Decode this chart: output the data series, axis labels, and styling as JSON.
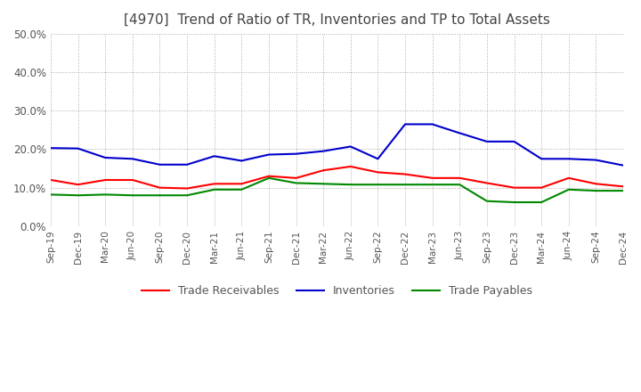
{
  "title": "[4970]  Trend of Ratio of TR, Inventories and TP to Total Assets",
  "title_fontsize": 11,
  "title_color": "#444444",
  "background_color": "#ffffff",
  "grid_color": "#aaaaaa",
  "grid_linestyle": "dotted",
  "ylim": [
    0.0,
    0.5
  ],
  "yticks": [
    0.0,
    0.1,
    0.2,
    0.3,
    0.4,
    0.5
  ],
  "legend_labels": [
    "Trade Receivables",
    "Inventories",
    "Trade Payables"
  ],
  "legend_colors": [
    "#ff0000",
    "#0000cc",
    "#008800"
  ],
  "x_labels": [
    "Sep-19",
    "Dec-19",
    "Mar-20",
    "Jun-20",
    "Sep-20",
    "Dec-20",
    "Mar-21",
    "Jun-21",
    "Sep-21",
    "Dec-21",
    "Mar-22",
    "Jun-22",
    "Sep-22",
    "Dec-22",
    "Mar-23",
    "Jun-23",
    "Sep-23",
    "Dec-23",
    "Mar-24",
    "Jun-24",
    "Sep-24",
    "Dec-24"
  ],
  "trade_receivables": [
    0.12,
    0.108,
    0.12,
    0.12,
    0.1,
    0.098,
    0.11,
    0.11,
    0.13,
    0.125,
    0.145,
    0.155,
    0.14,
    0.135,
    0.125,
    0.125,
    0.112,
    0.1,
    0.1,
    0.125,
    0.11,
    0.103
  ],
  "inventories": [
    0.203,
    0.202,
    0.178,
    0.175,
    0.16,
    0.16,
    0.182,
    0.17,
    0.186,
    0.188,
    0.195,
    0.207,
    0.175,
    0.265,
    0.265,
    0.242,
    0.22,
    0.22,
    0.175,
    0.175,
    0.172,
    0.158
  ],
  "trade_payables": [
    0.082,
    0.08,
    0.082,
    0.08,
    0.08,
    0.08,
    0.095,
    0.095,
    0.125,
    0.112,
    0.11,
    0.108,
    0.108,
    0.108,
    0.108,
    0.108,
    0.065,
    0.062,
    0.062,
    0.095,
    0.092,
    0.092
  ]
}
